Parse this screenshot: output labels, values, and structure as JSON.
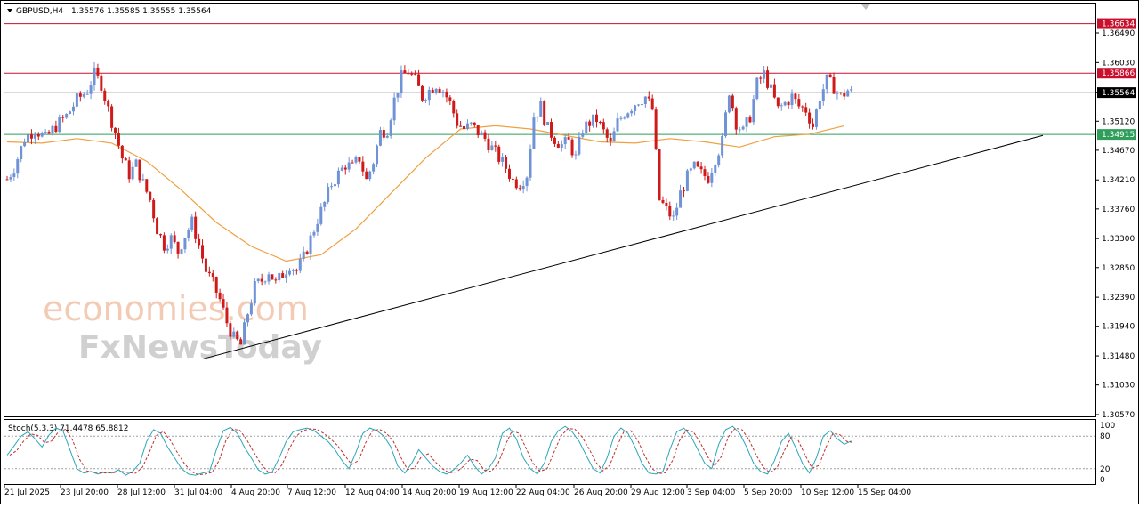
{
  "header": {
    "symbol": "GBPUSD,H4",
    "ohlc": "1.35576 1.35585 1.35555 1.35564"
  },
  "indicator": {
    "label": "Stoch(5,3,3) 71.4478 65.8812",
    "levels": [
      "100",
      "80",
      "20",
      "0"
    ]
  },
  "watermark": {
    "line1": "economies.com",
    "line2": "FxNewsToday"
  },
  "colors": {
    "bull": "#6f93d6",
    "bear": "#d01a1a",
    "ma": "#f0a040",
    "resistance": "#c8102e",
    "support": "#2e9e5a",
    "current": "#9a9a9a",
    "trendline": "#000000",
    "stoch_main": "#2aa7b8",
    "stoch_signal": "#c0302f"
  },
  "chart_data": {
    "type": "candlestick",
    "symbol": "GBPUSD",
    "timeframe": "H4",
    "ylim": [
      1.3057,
      1.3695
    ],
    "y_ticks": [
      "1.36490",
      "1.36030",
      "1.35570",
      "1.35120",
      "1.34670",
      "1.34210",
      "1.33760",
      "1.33300",
      "1.32850",
      "1.32390",
      "1.31940",
      "1.31480",
      "1.31030",
      "1.30570"
    ],
    "x_ticks": [
      "21 Jul 2025",
      "23 Jul 20:00",
      "28 Jul 12:00",
      "31 Jul 04:00",
      "4 Aug 20:00",
      "7 Aug 12:00",
      "12 Aug 04:00",
      "14 Aug 20:00",
      "19 Aug 12:00",
      "22 Aug 04:00",
      "26 Aug 20:00",
      "29 Aug 12:00",
      "3 Sep 04:00",
      "5 Sep 20:00",
      "10 Sep 12:00",
      "15 Sep 04:00"
    ],
    "horizontal_lines": [
      {
        "label": "1.36634",
        "value": 1.36634,
        "kind": "resistance"
      },
      {
        "label": "1.35866",
        "value": 1.35866,
        "kind": "resistance"
      },
      {
        "label": "1.35564",
        "value": 1.35564,
        "kind": "current"
      },
      {
        "label": "1.34915",
        "value": 1.34915,
        "kind": "support"
      }
    ],
    "trendline": {
      "from": [
        "31 Jul 04:00",
        1.3143
      ],
      "to": [
        "15 Sep 04:00",
        1.349
      ]
    },
    "close_path": [
      [
        0,
        1.3422
      ],
      [
        2,
        1.344
      ],
      [
        5,
        1.3485
      ],
      [
        8,
        1.35
      ],
      [
        11,
        1.3485
      ],
      [
        14,
        1.3505
      ],
      [
        17,
        1.352
      ],
      [
        20,
        1.3545
      ],
      [
        23,
        1.356
      ],
      [
        25,
        1.3585
      ],
      [
        27,
        1.357
      ],
      [
        29,
        1.353
      ],
      [
        31,
        1.3495
      ],
      [
        33,
        1.3455
      ],
      [
        35,
        1.343
      ],
      [
        37,
        1.3445
      ],
      [
        39,
        1.3415
      ],
      [
        41,
        1.339
      ],
      [
        43,
        1.3345
      ],
      [
        45,
        1.332
      ],
      [
        47,
        1.333
      ],
      [
        49,
        1.331
      ],
      [
        51,
        1.3335
      ],
      [
        53,
        1.3355
      ],
      [
        55,
        1.332
      ],
      [
        57,
        1.328
      ],
      [
        59,
        1.326
      ],
      [
        61,
        1.3235
      ],
      [
        63,
        1.32
      ],
      [
        65,
        1.3175
      ],
      [
        67,
        1.3165
      ],
      [
        69,
        1.3215
      ],
      [
        71,
        1.3255
      ],
      [
        73,
        1.3265
      ],
      [
        75,
        1.328
      ],
      [
        77,
        1.326
      ],
      [
        79,
        1.3275
      ],
      [
        81,
        1.329
      ],
      [
        83,
        1.328
      ],
      [
        85,
        1.33
      ],
      [
        87,
        1.333
      ],
      [
        89,
        1.336
      ],
      [
        91,
        1.3385
      ],
      [
        93,
        1.3415
      ],
      [
        95,
        1.343
      ],
      [
        97,
        1.3445
      ],
      [
        99,
        1.344
      ],
      [
        101,
        1.3455
      ],
      [
        103,
        1.342
      ],
      [
        105,
        1.345
      ],
      [
        107,
        1.3495
      ],
      [
        109,
        1.35
      ],
      [
        111,
        1.3545
      ],
      [
        113,
        1.358
      ],
      [
        115,
        1.359
      ],
      [
        117,
        1.3575
      ],
      [
        119,
        1.355
      ],
      [
        121,
        1.356
      ],
      [
        123,
        1.357
      ],
      [
        125,
        1.356
      ],
      [
        127,
        1.354
      ],
      [
        129,
        1.351
      ],
      [
        131,
        1.35
      ],
      [
        133,
        1.3505
      ],
      [
        135,
        1.3495
      ],
      [
        137,
        1.3485
      ],
      [
        139,
        1.347
      ],
      [
        141,
        1.3455
      ],
      [
        143,
        1.344
      ],
      [
        145,
        1.342
      ],
      [
        147,
        1.3415
      ],
      [
        149,
        1.343
      ],
      [
        151,
        1.352
      ],
      [
        153,
        1.3535
      ],
      [
        155,
        1.35
      ],
      [
        157,
        1.3485
      ],
      [
        159,
        1.3475
      ],
      [
        161,
        1.348
      ],
      [
        163,
        1.3455
      ],
      [
        165,
        1.35
      ],
      [
        167,
        1.351
      ],
      [
        169,
        1.3515
      ],
      [
        171,
        1.3495
      ],
      [
        173,
        1.3475
      ],
      [
        175,
        1.351
      ],
      [
        177,
        1.3525
      ],
      [
        179,
        1.3535
      ],
      [
        181,
        1.3545
      ],
      [
        183,
        1.355
      ],
      [
        185,
        1.353
      ],
      [
        187,
        1.339
      ],
      [
        189,
        1.3375
      ],
      [
        191,
        1.336
      ],
      [
        193,
        1.34
      ],
      [
        195,
        1.3425
      ],
      [
        197,
        1.344
      ],
      [
        199,
        1.343
      ],
      [
        201,
        1.3425
      ],
      [
        203,
        1.3455
      ],
      [
        205,
        1.348
      ],
      [
        207,
        1.356
      ],
      [
        209,
        1.351
      ],
      [
        211,
        1.3495
      ],
      [
        213,
        1.352
      ],
      [
        215,
        1.357
      ],
      [
        217,
        1.3585
      ],
      [
        219,
        1.356
      ],
      [
        221,
        1.353
      ],
      [
        223,
        1.354
      ],
      [
        225,
        1.355
      ],
      [
        227,
        1.3535
      ],
      [
        229,
        1.353
      ],
      [
        231,
        1.3505
      ],
      [
        233,
        1.355
      ],
      [
        235,
        1.3575
      ],
      [
        237,
        1.3565
      ],
      [
        239,
        1.355
      ],
      [
        241,
        1.356
      ],
      [
        242,
        1.3556
      ]
    ],
    "ma_path": [
      [
        0,
        1.348
      ],
      [
        10,
        1.3478
      ],
      [
        20,
        1.3485
      ],
      [
        30,
        1.3478
      ],
      [
        40,
        1.345
      ],
      [
        50,
        1.3405
      ],
      [
        60,
        1.3355
      ],
      [
        70,
        1.3318
      ],
      [
        80,
        1.3295
      ],
      [
        90,
        1.3305
      ],
      [
        100,
        1.3345
      ],
      [
        110,
        1.34
      ],
      [
        120,
        1.3455
      ],
      [
        130,
        1.35
      ],
      [
        140,
        1.3505
      ],
      [
        150,
        1.35
      ],
      [
        160,
        1.349
      ],
      [
        170,
        1.348
      ],
      [
        180,
        1.3478
      ],
      [
        190,
        1.3485
      ],
      [
        200,
        1.348
      ],
      [
        210,
        1.3472
      ],
      [
        220,
        1.3488
      ],
      [
        230,
        1.3492
      ],
      [
        240,
        1.3505
      ]
    ],
    "stoch_k": [
      [
        0,
        45
      ],
      [
        2,
        62
      ],
      [
        4,
        80
      ],
      [
        6,
        88
      ],
      [
        8,
        75
      ],
      [
        10,
        60
      ],
      [
        12,
        82
      ],
      [
        14,
        95
      ],
      [
        16,
        90
      ],
      [
        18,
        55
      ],
      [
        20,
        20
      ],
      [
        22,
        12
      ],
      [
        24,
        15
      ],
      [
        26,
        10
      ],
      [
        28,
        14
      ],
      [
        30,
        12
      ],
      [
        32,
        18
      ],
      [
        34,
        8
      ],
      [
        36,
        15
      ],
      [
        38,
        30
      ],
      [
        40,
        70
      ],
      [
        42,
        92
      ],
      [
        44,
        85
      ],
      [
        46,
        60
      ],
      [
        48,
        40
      ],
      [
        50,
        20
      ],
      [
        52,
        10
      ],
      [
        54,
        8
      ],
      [
        56,
        12
      ],
      [
        58,
        15
      ],
      [
        60,
        55
      ],
      [
        62,
        90
      ],
      [
        64,
        96
      ],
      [
        66,
        85
      ],
      [
        68,
        60
      ],
      [
        70,
        40
      ],
      [
        72,
        18
      ],
      [
        74,
        10
      ],
      [
        76,
        14
      ],
      [
        78,
        40
      ],
      [
        80,
        70
      ],
      [
        82,
        88
      ],
      [
        84,
        92
      ],
      [
        86,
        95
      ],
      [
        88,
        90
      ],
      [
        90,
        80
      ],
      [
        92,
        70
      ],
      [
        94,
        55
      ],
      [
        96,
        35
      ],
      [
        98,
        20
      ],
      [
        100,
        50
      ],
      [
        102,
        85
      ],
      [
        104,
        95
      ],
      [
        106,
        90
      ],
      [
        108,
        80
      ],
      [
        110,
        60
      ],
      [
        112,
        25
      ],
      [
        114,
        12
      ],
      [
        116,
        30
      ],
      [
        118,
        55
      ],
      [
        120,
        40
      ],
      [
        122,
        25
      ],
      [
        124,
        15
      ],
      [
        126,
        10
      ],
      [
        128,
        18
      ],
      [
        130,
        30
      ],
      [
        132,
        45
      ],
      [
        134,
        25
      ],
      [
        136,
        10
      ],
      [
        138,
        20
      ],
      [
        140,
        40
      ],
      [
        142,
        85
      ],
      [
        144,
        95
      ],
      [
        146,
        75
      ],
      [
        148,
        40
      ],
      [
        150,
        20
      ],
      [
        152,
        10
      ],
      [
        154,
        30
      ],
      [
        156,
        70
      ],
      [
        158,
        90
      ],
      [
        160,
        98
      ],
      [
        162,
        88
      ],
      [
        164,
        70
      ],
      [
        166,
        45
      ],
      [
        168,
        20
      ],
      [
        170,
        12
      ],
      [
        172,
        40
      ],
      [
        174,
        80
      ],
      [
        176,
        95
      ],
      [
        178,
        85
      ],
      [
        180,
        60
      ],
      [
        182,
        30
      ],
      [
        184,
        12
      ],
      [
        186,
        10
      ],
      [
        188,
        15
      ],
      [
        190,
        55
      ],
      [
        192,
        88
      ],
      [
        194,
        95
      ],
      [
        196,
        80
      ],
      [
        198,
        55
      ],
      [
        200,
        30
      ],
      [
        202,
        20
      ],
      [
        204,
        65
      ],
      [
        206,
        92
      ],
      [
        208,
        98
      ],
      [
        210,
        85
      ],
      [
        212,
        60
      ],
      [
        214,
        30
      ],
      [
        216,
        15
      ],
      [
        218,
        10
      ],
      [
        220,
        35
      ],
      [
        222,
        70
      ],
      [
        224,
        85
      ],
      [
        226,
        60
      ],
      [
        228,
        30
      ],
      [
        230,
        12
      ],
      [
        232,
        40
      ],
      [
        234,
        80
      ],
      [
        236,
        90
      ],
      [
        238,
        75
      ],
      [
        240,
        65
      ],
      [
        242,
        71
      ]
    ]
  }
}
